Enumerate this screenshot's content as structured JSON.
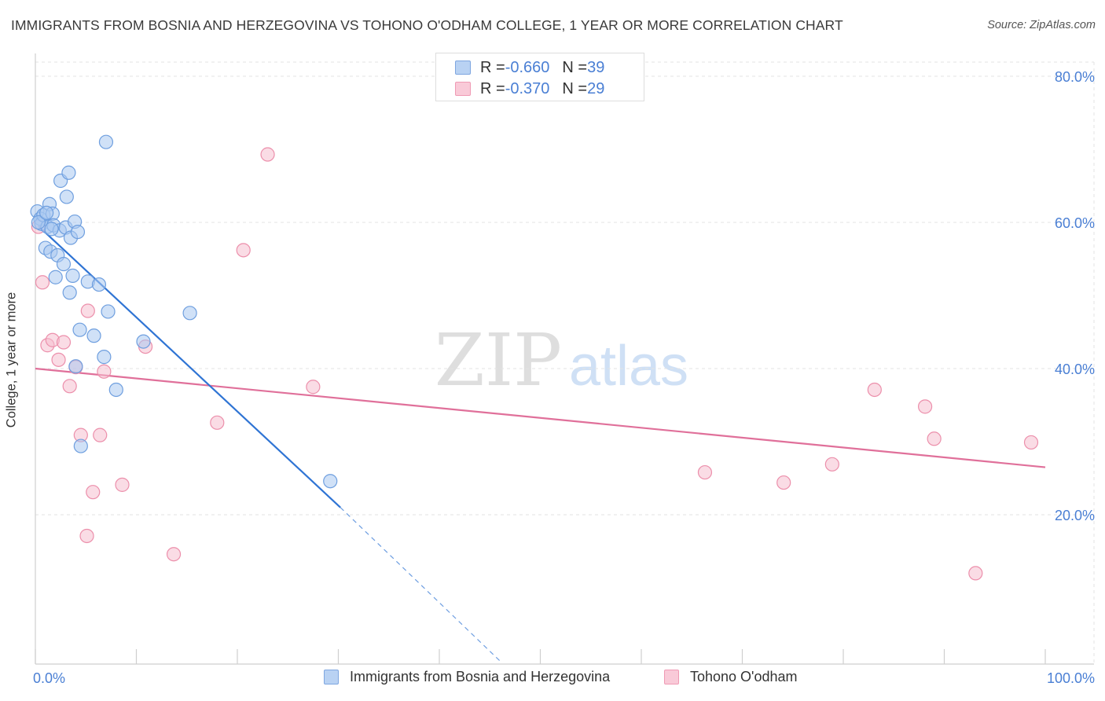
{
  "title": "IMMIGRANTS FROM BOSNIA AND HERZEGOVINA VS TOHONO O'ODHAM COLLEGE, 1 YEAR OR MORE CORRELATION CHART",
  "source": "Source: ZipAtlas.com",
  "watermark": {
    "zip": "ZIP",
    "atlas": "atlas"
  },
  "legend": {
    "series1": {
      "r_label": "R = ",
      "r_value": "-0.660",
      "n_label": "N = ",
      "n_value": "39"
    },
    "series2": {
      "r_label": "R = ",
      "r_value": "-0.370",
      "n_label": "N = ",
      "n_value": "29"
    }
  },
  "chart_data": {
    "type": "scatter",
    "title": "IMMIGRANTS FROM BOSNIA AND HERZEGOVINA VS TOHONO O'ODHAM COLLEGE, 1 YEAR OR MORE CORRELATION CHART",
    "xlabel": "",
    "ylabel": "College, 1 year or more",
    "xlim": [
      0,
      100
    ],
    "ylim": [
      0,
      85
    ],
    "x_tick_labels": [
      "0.0%",
      "100.0%"
    ],
    "y_ticks": [
      20,
      40,
      60,
      80
    ],
    "y_tick_labels": [
      "20.0%",
      "40.0%",
      "60.0%",
      "80.0%"
    ],
    "grid": true,
    "series": [
      {
        "name": "Immigrants from Bosnia and Herzegovina",
        "color": "#a9c8f0",
        "stroke": "#6f9fdf",
        "line_color": "#2f74d4",
        "r": -0.66,
        "n": 39,
        "trend": {
          "x0": 0.3,
          "y0": 59.5,
          "x1": 30.2,
          "y1": 21.0,
          "dash_to_x": 46.0,
          "dash_to_y": 0.0
        },
        "points": [
          [
            0.2,
            61.5
          ],
          [
            0.5,
            60.5
          ],
          [
            0.6,
            59.8
          ],
          [
            0.8,
            61.0
          ],
          [
            1.0,
            56.5
          ],
          [
            1.2,
            59.4
          ],
          [
            1.4,
            62.5
          ],
          [
            1.5,
            56.0
          ],
          [
            1.7,
            61.2
          ],
          [
            1.8,
            59.6
          ],
          [
            2.0,
            52.5
          ],
          [
            2.2,
            55.5
          ],
          [
            2.4,
            58.9
          ],
          [
            2.5,
            65.7
          ],
          [
            2.8,
            54.3
          ],
          [
            3.0,
            59.3
          ],
          [
            3.1,
            63.5
          ],
          [
            3.3,
            66.8
          ],
          [
            3.4,
            50.4
          ],
          [
            3.5,
            57.9
          ],
          [
            3.7,
            52.7
          ],
          [
            3.9,
            60.1
          ],
          [
            4.2,
            58.7
          ],
          [
            4.4,
            45.3
          ],
          [
            4.5,
            29.4
          ],
          [
            5.2,
            51.9
          ],
          [
            5.8,
            44.5
          ],
          [
            6.3,
            51.5
          ],
          [
            6.8,
            41.6
          ],
          [
            7.0,
            71.0
          ],
          [
            7.2,
            47.8
          ],
          [
            8.0,
            37.1
          ],
          [
            10.7,
            43.7
          ],
          [
            15.3,
            47.6
          ],
          [
            29.2,
            24.6
          ],
          [
            0.3,
            60.0
          ],
          [
            1.1,
            61.3
          ],
          [
            1.6,
            59.1
          ],
          [
            4.0,
            40.3
          ]
        ]
      },
      {
        "name": "Tohono O'odham",
        "color": "#f6bfd0",
        "stroke": "#ec8fab",
        "line_color": "#e0709a",
        "r": -0.37,
        "n": 29,
        "trend": {
          "x0": 0.0,
          "y0": 40.0,
          "x1": 100.0,
          "y1": 26.5
        },
        "points": [
          [
            0.3,
            59.4
          ],
          [
            0.7,
            51.8
          ],
          [
            1.2,
            43.2
          ],
          [
            1.7,
            43.9
          ],
          [
            2.3,
            41.2
          ],
          [
            2.8,
            43.6
          ],
          [
            3.4,
            37.6
          ],
          [
            4.0,
            40.2
          ],
          [
            4.5,
            30.9
          ],
          [
            5.1,
            17.1
          ],
          [
            5.2,
            47.9
          ],
          [
            5.7,
            23.1
          ],
          [
            6.4,
            30.9
          ],
          [
            6.8,
            39.6
          ],
          [
            8.6,
            24.1
          ],
          [
            10.9,
            43.0
          ],
          [
            13.7,
            14.6
          ],
          [
            18.0,
            32.6
          ],
          [
            20.6,
            56.2
          ],
          [
            23.0,
            69.3
          ],
          [
            27.5,
            37.5
          ],
          [
            66.3,
            25.8
          ],
          [
            74.1,
            24.4
          ],
          [
            78.9,
            26.9
          ],
          [
            83.1,
            37.1
          ],
          [
            88.1,
            34.8
          ],
          [
            89.0,
            30.4
          ],
          [
            93.1,
            12.0
          ],
          [
            98.6,
            29.9
          ]
        ]
      }
    ]
  }
}
